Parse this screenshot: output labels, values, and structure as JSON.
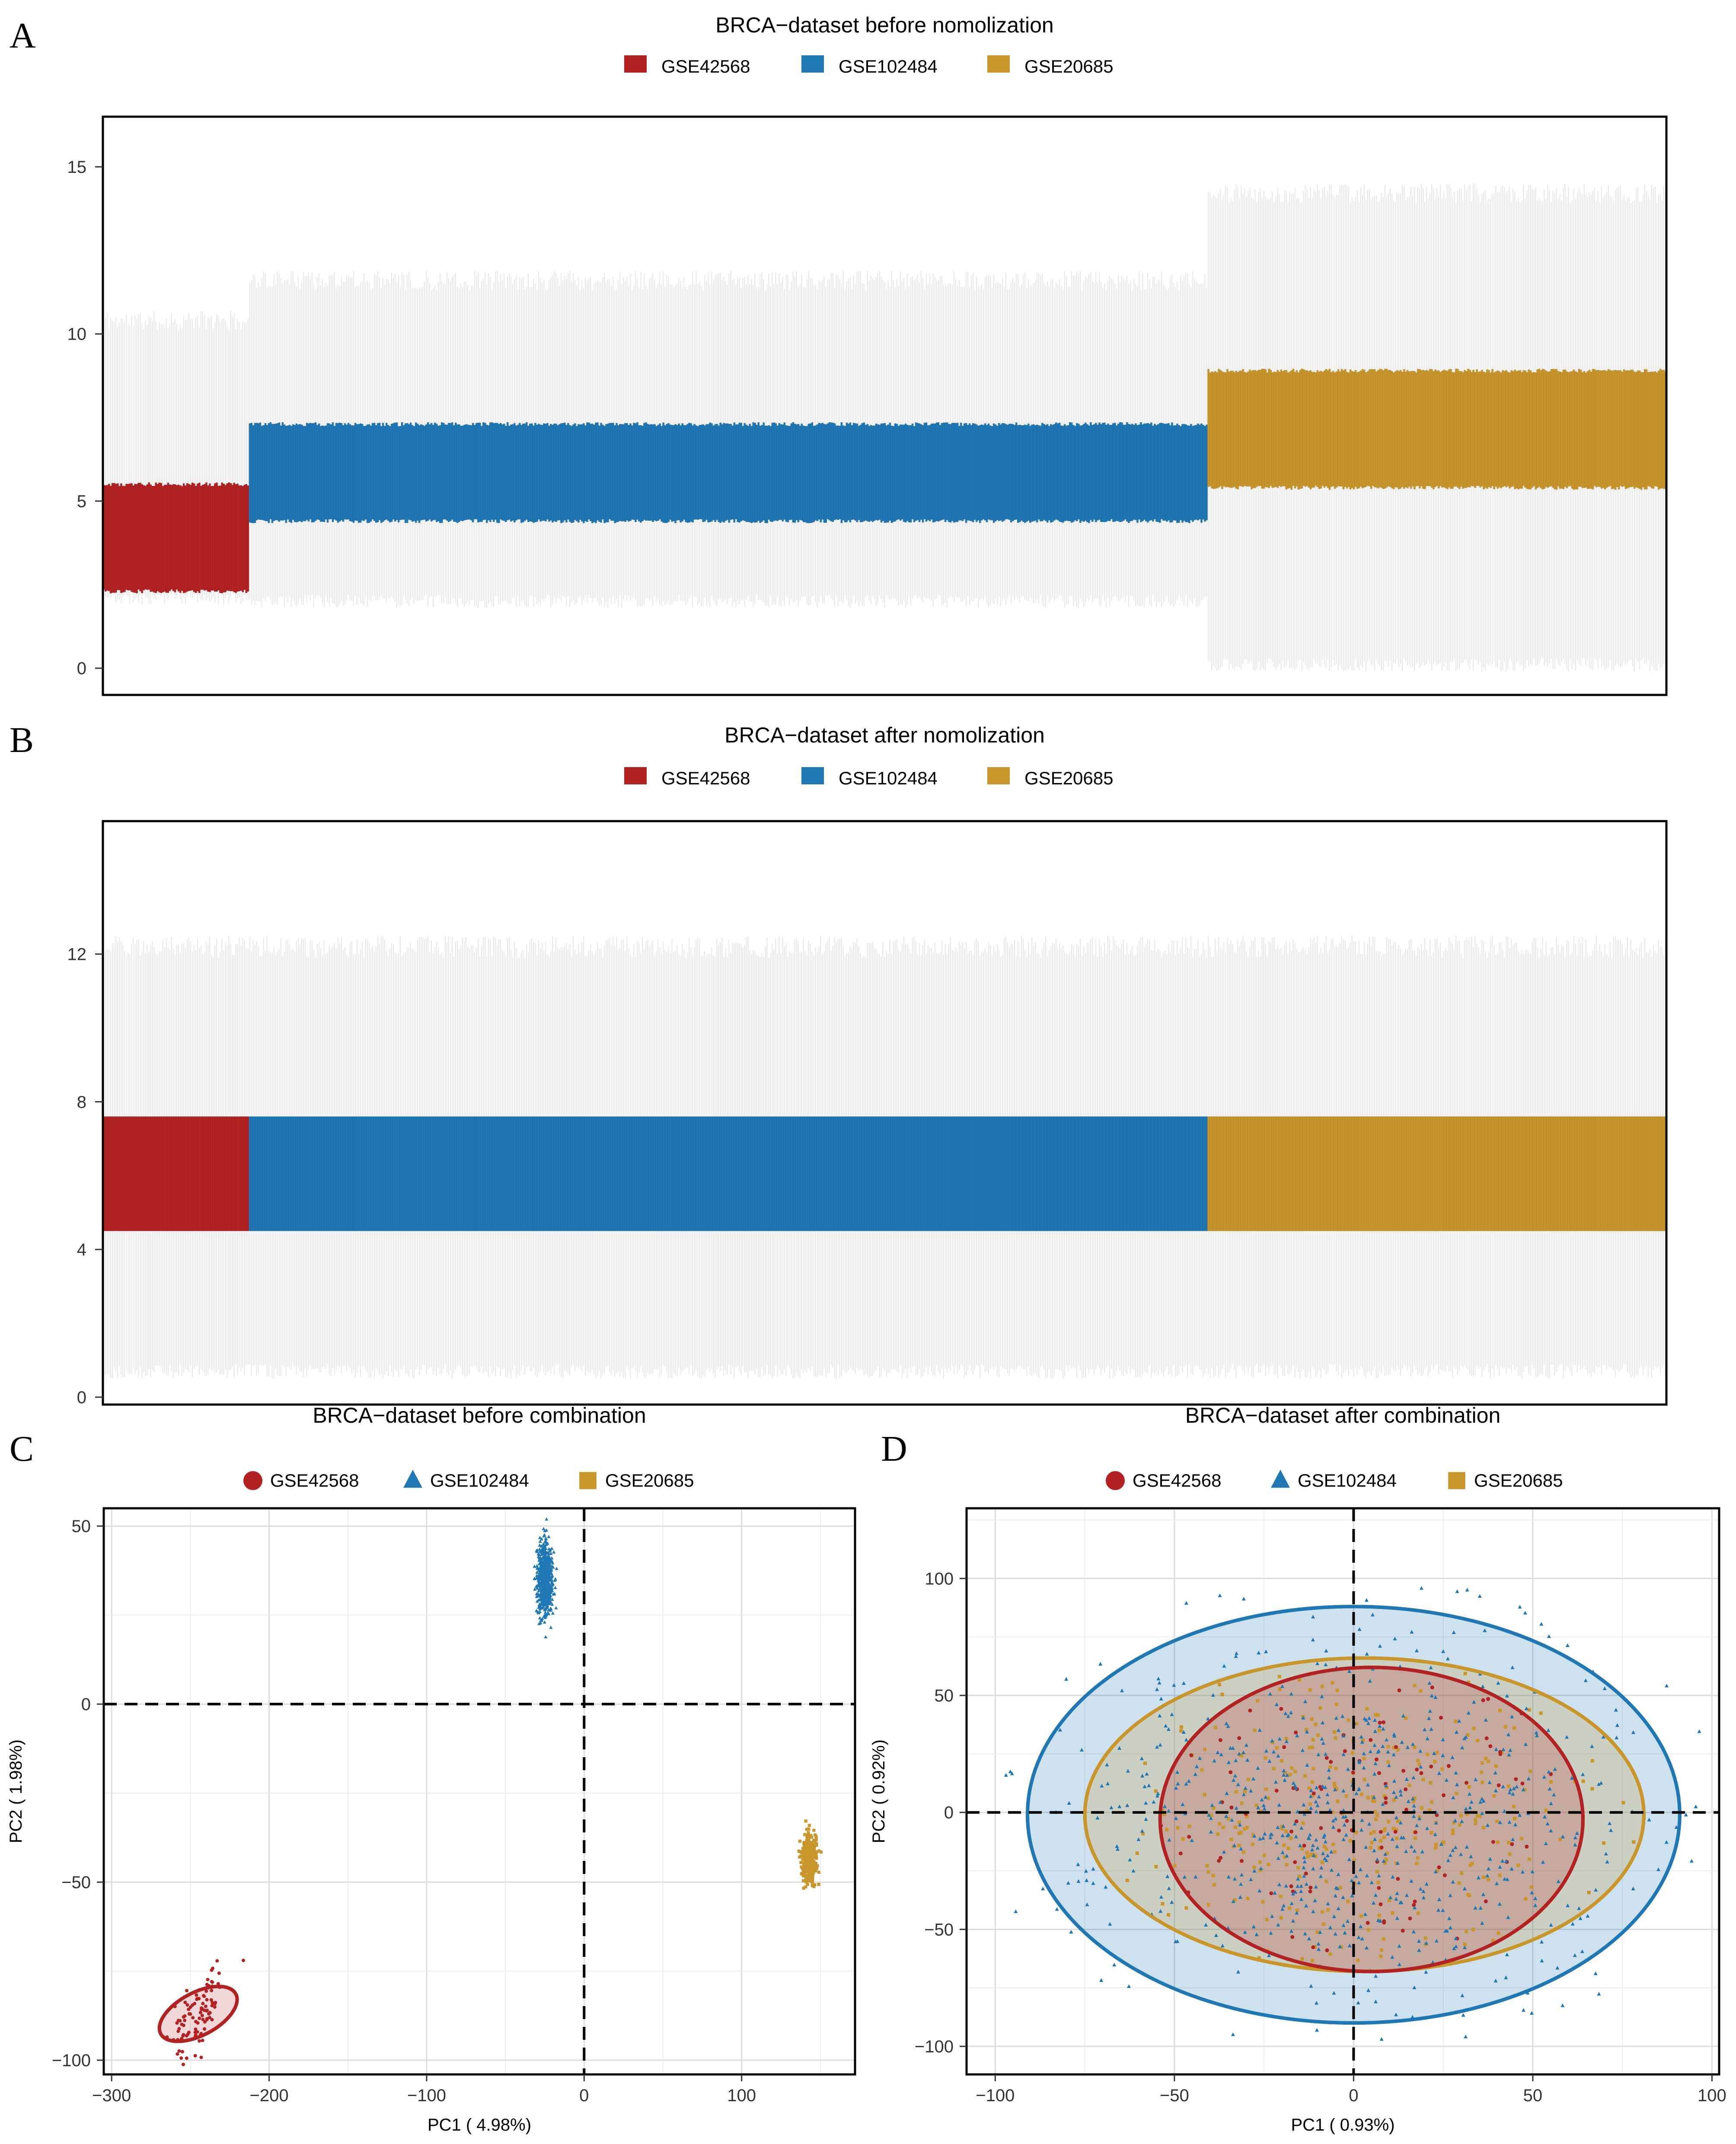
{
  "panels": {
    "A": {
      "letter": "A"
    },
    "B": {
      "letter": "B"
    },
    "C": {
      "letter": "C"
    },
    "D": {
      "letter": "D"
    }
  },
  "colors": {
    "GSE42568": "#b22222",
    "GSE102484": "#1f77b4",
    "GSE20685": "#c8962a",
    "whisker": "#e6e6e6"
  },
  "chart_data": [
    {
      "id": "A",
      "type": "box",
      "title": "BRCA−dataset before nomolization",
      "legend": {
        "position": "top",
        "entries": [
          "GSE42568",
          "GSE102484",
          "GSE20685"
        ]
      },
      "ylim": [
        -0.8,
        16.5
      ],
      "yticks": [
        0,
        5,
        10,
        15
      ],
      "ytick_labels": [
        "0",
        "5",
        "10",
        "15"
      ],
      "grid": false,
      "series": [
        {
          "name": "GSE42568",
          "n_samples": 104,
          "q1": 2.3,
          "q3": 5.5,
          "whisker_low": 2.1,
          "whisker_high": 10.4
        },
        {
          "name": "GSE102484",
          "n_samples": 683,
          "q1": 4.4,
          "q3": 7.3,
          "whisker_low": 2.0,
          "whisker_high": 11.6
        },
        {
          "name": "GSE20685",
          "n_samples": 327,
          "q1": 5.4,
          "q3": 8.9,
          "whisker_low": 0.1,
          "whisker_high": 14.2
        }
      ]
    },
    {
      "id": "B",
      "type": "box",
      "title": "BRCA−dataset after nomolization",
      "legend": {
        "position": "top",
        "entries": [
          "GSE42568",
          "GSE102484",
          "GSE20685"
        ]
      },
      "ylim": [
        -0.2,
        15.6
      ],
      "yticks": [
        0,
        4,
        8,
        12
      ],
      "ytick_labels": [
        "0",
        "4",
        "8",
        "12"
      ],
      "grid": false,
      "series": [
        {
          "name": "GSE42568",
          "n_samples": 104,
          "q1": 4.5,
          "q3": 7.6,
          "whisker_low": 0.7,
          "whisker_high": 12.2
        },
        {
          "name": "GSE102484",
          "n_samples": 683,
          "q1": 4.5,
          "q3": 7.6,
          "whisker_low": 0.7,
          "whisker_high": 12.2
        },
        {
          "name": "GSE20685",
          "n_samples": 327,
          "q1": 4.5,
          "q3": 7.6,
          "whisker_low": 0.7,
          "whisker_high": 12.2
        }
      ]
    },
    {
      "id": "C",
      "type": "scatter",
      "title": "BRCA−dataset before combination",
      "legend": {
        "position": "top",
        "entries": [
          "GSE42568",
          "GSE102484",
          "GSE20685"
        ],
        "shapes": [
          "circle",
          "triangle",
          "square"
        ]
      },
      "xlabel": "PC1 ( 4.98%)",
      "ylabel": "PC2 ( 1.98%)",
      "xlim": [
        -305,
        172
      ],
      "ylim": [
        -104,
        55
      ],
      "xticks": [
        -300,
        -200,
        -100,
        0,
        100
      ],
      "xtick_labels": [
        "−300",
        "−200",
        "−100",
        "0",
        "100"
      ],
      "yticks": [
        -100,
        -50,
        0,
        50
      ],
      "ytick_labels": [
        "−100",
        "−50",
        "0",
        "50"
      ],
      "grid": true,
      "reference_lines": {
        "x": 0,
        "y": 0
      },
      "series": [
        {
          "name": "GSE42568",
          "center": [
            -245,
            -87
          ],
          "spread": [
            10,
            4
          ],
          "n_points": 104,
          "ellipse": {
            "rx": 27,
            "ry": 6,
            "angle_deg": -28
          }
        },
        {
          "name": "GSE102484",
          "center": [
            -25,
            35
          ],
          "spread": [
            2.5,
            5
          ],
          "n_points": 683
        },
        {
          "name": "GSE20685",
          "center": [
            143,
            -43
          ],
          "spread": [
            2.5,
            3.5
          ],
          "n_points": 327
        }
      ]
    },
    {
      "id": "D",
      "type": "scatter",
      "title": "BRCA−dataset after combination",
      "legend": {
        "position": "top",
        "entries": [
          "GSE42568",
          "GSE102484",
          "GSE20685"
        ],
        "shapes": [
          "circle",
          "triangle",
          "square"
        ]
      },
      "xlabel": "PC1 ( 0.93%)",
      "ylabel": "PC2 ( 0.92%)",
      "xlim": [
        -108,
        102
      ],
      "ylim": [
        -112,
        130
      ],
      "xticks": [
        -100,
        -50,
        0,
        50,
        100
      ],
      "xtick_labels": [
        "−100",
        "−50",
        "0",
        "50",
        "100"
      ],
      "yticks": [
        -100,
        -50,
        0,
        50,
        100
      ],
      "ytick_labels": [
        "−100",
        "−50",
        "0",
        "50",
        "100"
      ],
      "grid": true,
      "reference_lines": {
        "x": 0,
        "y": 0
      },
      "series": [
        {
          "name": "GSE42568",
          "center": [
            5,
            -3
          ],
          "spread": [
            28,
            30
          ],
          "n_points": 104,
          "ellipse": {
            "cx": 5,
            "cy": -3,
            "rx": 59,
            "ry": 65
          }
        },
        {
          "name": "GSE102484",
          "center": [
            0,
            -2
          ],
          "spread": [
            38,
            40
          ],
          "n_points": 683,
          "ellipse": {
            "cx": 0,
            "cy": -1,
            "rx": 91,
            "ry": 89
          }
        },
        {
          "name": "GSE20685",
          "center": [
            3,
            -2
          ],
          "spread": [
            30,
            30
          ],
          "n_points": 327,
          "ellipse": {
            "cx": 3,
            "cy": -1,
            "rx": 78,
            "ry": 67
          }
        }
      ]
    }
  ]
}
